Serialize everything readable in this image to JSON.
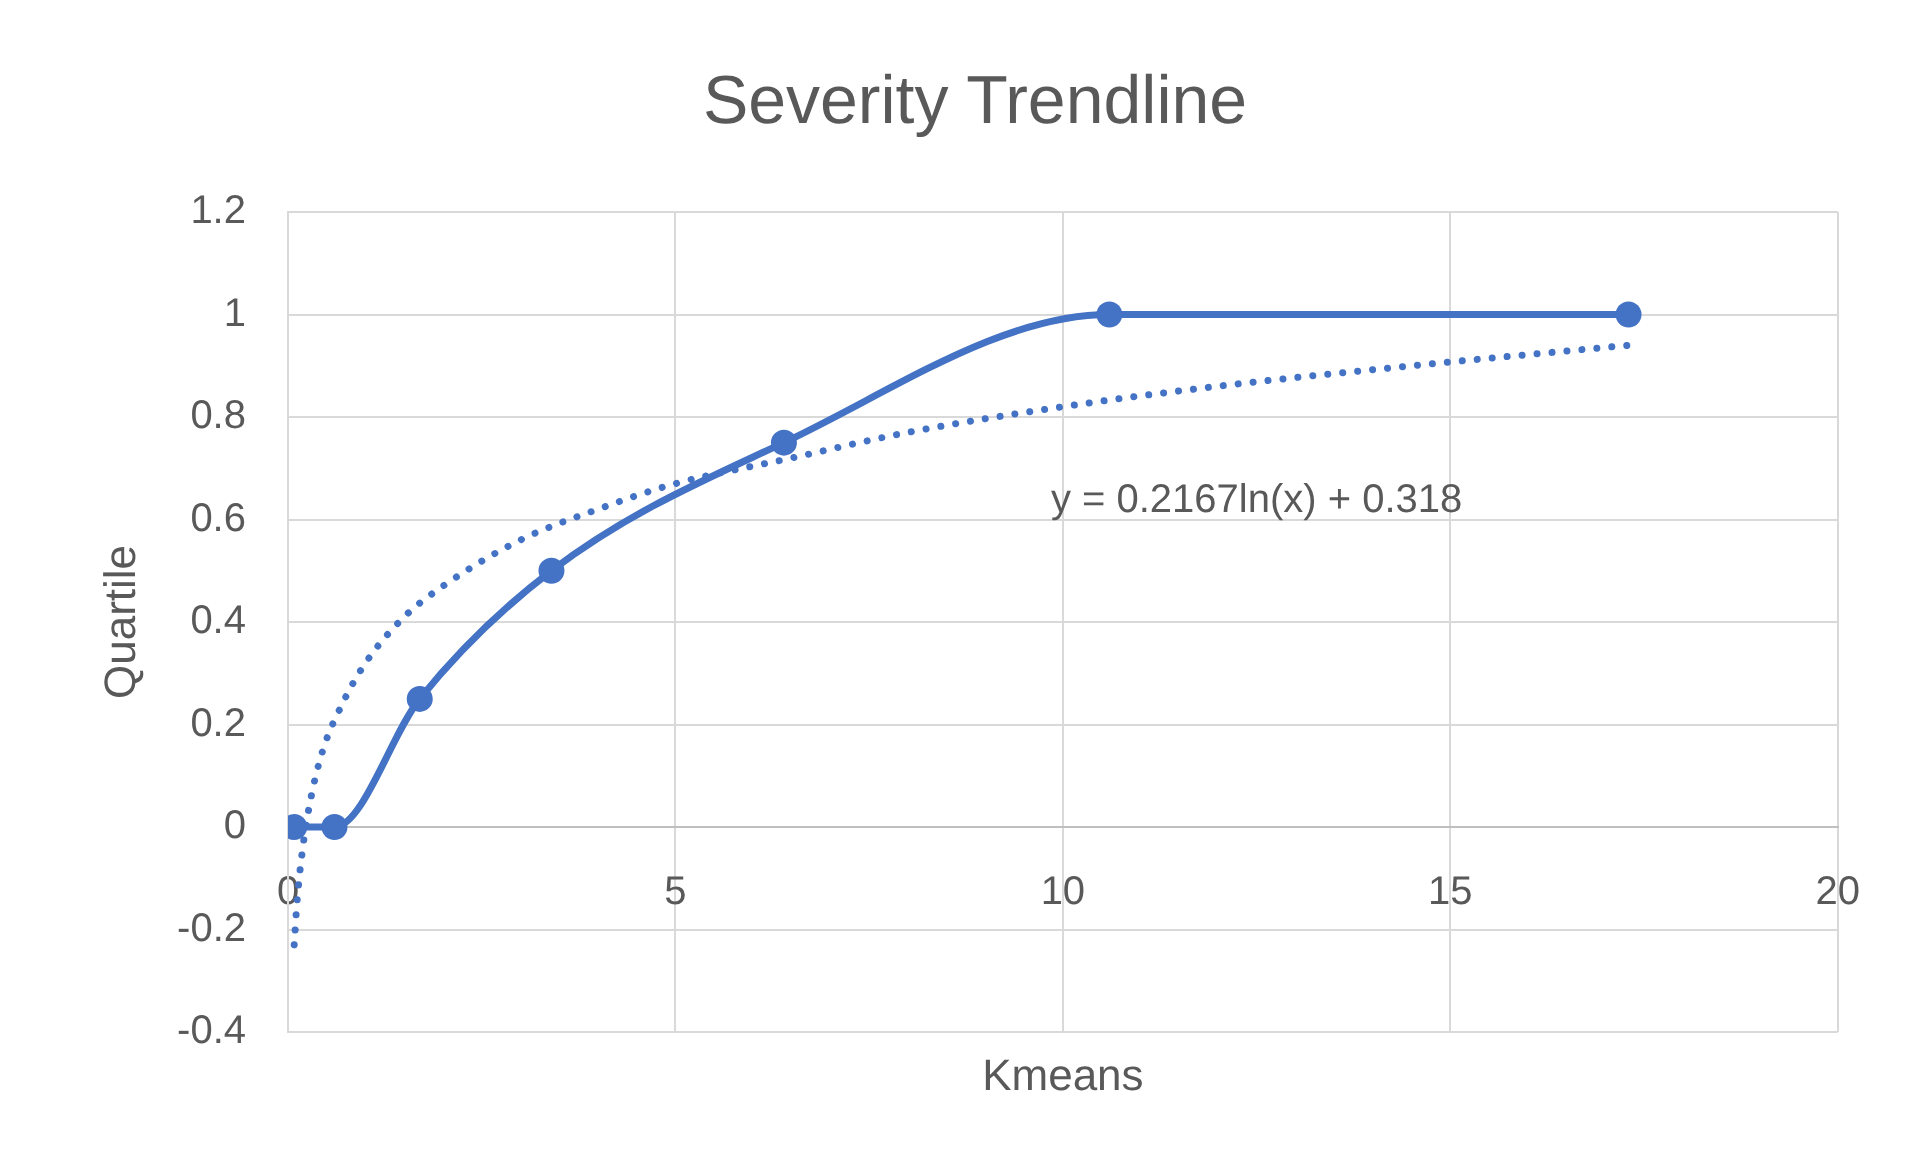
{
  "chart_data": {
    "type": "line",
    "title": "Severity Trendline",
    "xlabel": "Kmeans",
    "ylabel": "Quartile",
    "xlim": [
      0,
      20
    ],
    "xticks": [
      0,
      5,
      10,
      15,
      20
    ],
    "ylim": [
      -0.4,
      1.2
    ],
    "yticks": [
      -0.4,
      -0.2,
      0,
      0.2,
      0.4,
      0.6,
      0.8,
      1,
      1.2
    ],
    "grid": true,
    "series": [
      {
        "color": "#4472c4",
        "x": [
          0.08,
          0.6,
          1.7,
          3.4,
          6.4,
          10.6,
          17.3
        ],
        "values": [
          0,
          0,
          0.25,
          0.5,
          0.75,
          1,
          1
        ],
        "marker": "circle",
        "line_style": "solid"
      },
      {
        "type": "line",
        "color": "#4472c4",
        "x": [
          0.08,
          0.12,
          0.2,
          0.3,
          0.45,
          0.7,
          1,
          1.5,
          2,
          3,
          4,
          5,
          6.5,
          8,
          10,
          12,
          14.5,
          17.3
        ],
        "values": [
          -0.23,
          -0.14,
          -0.03,
          0.06,
          0.15,
          0.24,
          0.32,
          0.41,
          0.47,
          0.56,
          0.62,
          0.67,
          0.72,
          0.77,
          0.82,
          0.86,
          0.9,
          0.94
        ],
        "marker": "none",
        "line_style": "dotted"
      }
    ],
    "annotations": [
      "y = 0.2167ln(x) + 0.318"
    ]
  }
}
